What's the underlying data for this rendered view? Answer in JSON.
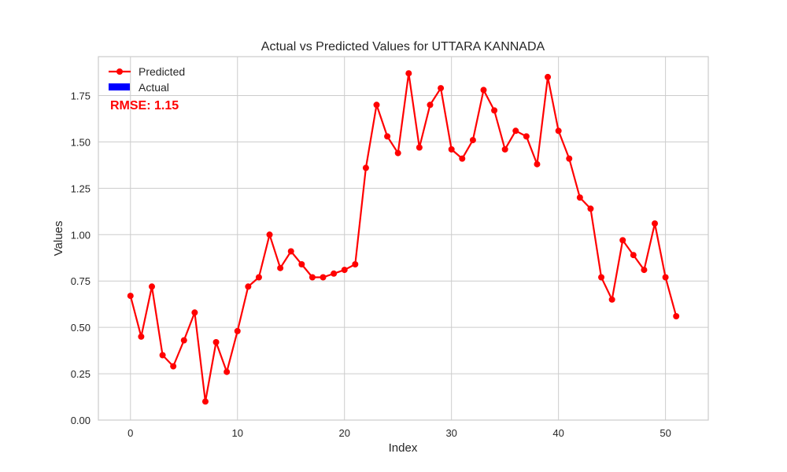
{
  "chart_data": {
    "type": "line",
    "title": "Actual vs Predicted Values for UTTARA KANNADA",
    "xlabel": "Index",
    "ylabel": "Values",
    "xlim": [
      -3,
      54
    ],
    "ylim": [
      0,
      1.96
    ],
    "xticks": [
      0,
      10,
      20,
      30,
      40,
      50
    ],
    "yticks": [
      0.0,
      0.25,
      0.5,
      0.75,
      1.0,
      1.25,
      1.5,
      1.75
    ],
    "ytick_labels": [
      "0.00",
      "0.25",
      "0.50",
      "0.75",
      "1.00",
      "1.25",
      "1.50",
      "1.75"
    ],
    "grid": true,
    "legend_position": "top-left",
    "series": [
      {
        "name": "Predicted",
        "color": "#ff0000",
        "marker": "circle",
        "x": [
          0,
          1,
          2,
          3,
          4,
          5,
          6,
          7,
          8,
          9,
          10,
          11,
          12,
          13,
          14,
          15,
          16,
          17,
          18,
          19,
          20,
          21,
          22,
          23,
          24,
          25,
          26,
          27,
          28,
          29,
          30,
          31,
          32,
          33,
          34,
          35,
          36,
          37,
          38,
          39,
          40,
          41,
          42,
          43,
          44,
          45,
          46,
          47,
          48,
          49,
          50,
          51
        ],
        "values": [
          0.67,
          0.45,
          0.72,
          0.35,
          0.29,
          0.43,
          0.58,
          0.1,
          0.42,
          0.26,
          0.48,
          0.72,
          0.77,
          1.0,
          0.82,
          0.91,
          0.84,
          0.77,
          0.77,
          0.79,
          0.81,
          0.84,
          1.36,
          1.7,
          1.53,
          1.44,
          1.87,
          1.47,
          1.7,
          1.79,
          1.46,
          1.41,
          1.51,
          1.78,
          1.67,
          1.46,
          1.56,
          1.53,
          1.38,
          1.85,
          1.56,
          1.41,
          1.2,
          1.14,
          0.77,
          0.65,
          0.97,
          0.89,
          0.81,
          1.06,
          0.77,
          0.56
        ]
      },
      {
        "name": "Actual",
        "color": "#0000ff",
        "marker": "bar",
        "values": []
      }
    ],
    "annotations": [
      {
        "text": "RMSE: 1.15",
        "color": "#ff0000"
      }
    ]
  }
}
